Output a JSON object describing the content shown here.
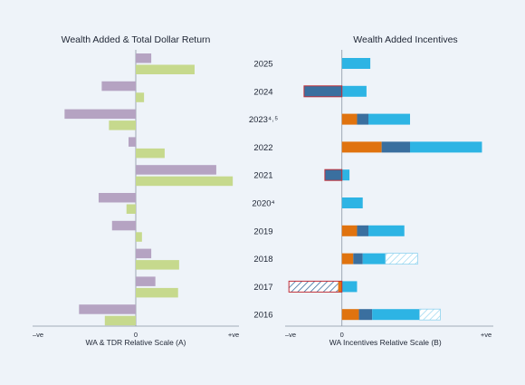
{
  "chart_data": [
    {
      "type": "bar",
      "orientation": "horizontal",
      "title": "Wealth Added & Total Dollar Return",
      "xlabel": "WA & TDR Relative Scale (A)",
      "xtick_labels": {
        "negative": "–ve",
        "zero": "0",
        "positive": "+ve"
      },
      "categories": [
        "2025",
        "2024",
        "2023",
        "2022",
        "2021",
        "2020",
        "2019",
        "2018",
        "2017",
        "2016"
      ],
      "xlim": [
        -10,
        10
      ],
      "series": [
        {
          "values": [
            1.5,
            -3.3,
            -6.9,
            -0.7,
            7.8,
            -3.6,
            -2.3,
            1.5,
            1.9,
            -5.5
          ]
        },
        {
          "values": [
            5.7,
            0.8,
            -2.6,
            2.8,
            9.4,
            -0.9,
            0.6,
            4.2,
            4.1,
            -3.0
          ]
        }
      ],
      "grid": false,
      "legend": "none"
    },
    {
      "type": "bar",
      "stacked": true,
      "orientation": "horizontal",
      "title": "Wealth Added Incentives",
      "xlabel": "WA Incentives Relative Scale (B)",
      "xtick_labels": {
        "negative": "–ve",
        "zero": "0",
        "positive": "+ve"
      },
      "categories": [
        "2025",
        "2024",
        "2023⁴˒⁵",
        "2022",
        "2021",
        "2020⁴",
        "2019",
        "2018",
        "2017",
        "2016"
      ],
      "xlim": [
        -3,
        8
      ],
      "series": [
        {
          "values": [
            0,
            0,
            0.8,
            2.1,
            0,
            0,
            0.8,
            0.6,
            -0.2,
            0.9
          ]
        },
        {
          "values": [
            0,
            -2.0,
            0.6,
            1.5,
            -0.9,
            0,
            0.6,
            0.5,
            -2.6,
            0.7
          ]
        },
        {
          "values": [
            1.5,
            1.3,
            2.2,
            3.8,
            0.4,
            1.1,
            1.9,
            1.2,
            0.8,
            2.5
          ]
        },
        {
          "values": [
            0,
            0,
            0,
            0,
            0,
            0,
            0,
            1.7,
            0,
            1.1
          ]
        }
      ],
      "grid": false,
      "legend": "none"
    }
  ],
  "colors": {
    "background": "#eef3f9",
    "left_negative": "#b5a3c2",
    "left_positive": "#c6d98d",
    "stack": [
      "#e0730f",
      "#3a6f9f",
      "#2db4e4",
      "#c7e7f5"
    ],
    "hatch_stripe": "#35a9da",
    "hatch_stripe_dark": "#3a6f9f",
    "outline_red": "#c0303a",
    "axis": "#8a94a3"
  }
}
